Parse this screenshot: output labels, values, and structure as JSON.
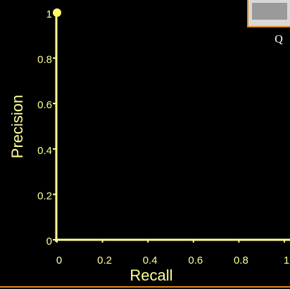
{
  "chart_data": {
    "type": "scatter",
    "xlabel": "Recall",
    "ylabel": "Precision",
    "x": [
      0
    ],
    "series": [
      {
        "color": "#ffff66",
        "values": [
          1
        ]
      }
    ],
    "xlim": [
      0,
      1
    ],
    "xticks": [
      0,
      0.2,
      0.4,
      0.6,
      0.8,
      1
    ],
    "ylim": [
      0,
      1
    ],
    "yticks": [
      0,
      0.2,
      0.4,
      0.6,
      0.8,
      1
    ],
    "axis_color": "#ffff99",
    "annotation": "Q"
  }
}
